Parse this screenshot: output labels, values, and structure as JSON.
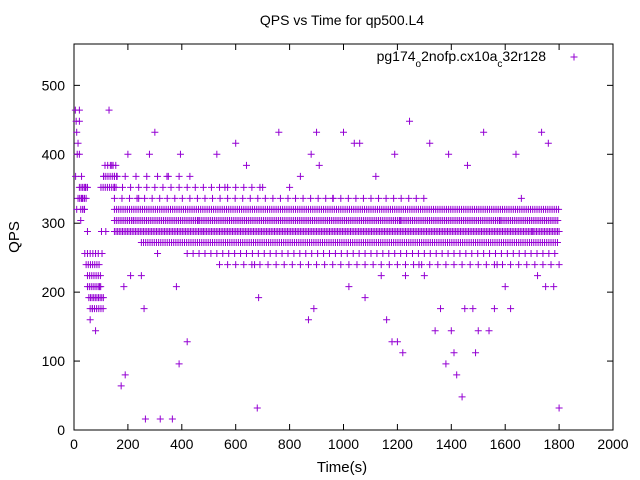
{
  "chart_data": {
    "type": "scatter",
    "title": "QPS vs Time for qp500.L4",
    "xlabel": "Time(s)",
    "ylabel": "QPS",
    "xlim": [
      0,
      2000
    ],
    "ylim": [
      0,
      560
    ],
    "xticks": [
      0,
      200,
      400,
      600,
      800,
      1000,
      1200,
      1400,
      1600,
      1800,
      2000
    ],
    "yticks": [
      0,
      100,
      200,
      300,
      400,
      500
    ],
    "grid": false,
    "legend_position": "top-right",
    "marker": "plus",
    "series": [
      {
        "name_parts": [
          "pg174",
          "o",
          "2nofp.cx10a",
          "c",
          "32r128"
        ],
        "color": "#9400d3",
        "bands": [
          {
            "y": 320,
            "x_start": 150,
            "x_end": 1800,
            "step": 8
          },
          {
            "y": 304,
            "x_start": 150,
            "x_end": 1800,
            "step": 7
          },
          {
            "y": 288,
            "x_start": 150,
            "x_end": 1800,
            "step": 6
          },
          {
            "y": 272,
            "x_start": 250,
            "x_end": 1800,
            "step": 8
          },
          {
            "y": 256,
            "x_start": 420,
            "x_end": 1800,
            "step": 22
          },
          {
            "y": 240,
            "x_start": 540,
            "x_end": 1800,
            "step": 30
          },
          {
            "y": 336,
            "x_start": 150,
            "x_end": 1300,
            "step": 28
          },
          {
            "y": 352,
            "x_start": 150,
            "x_end": 700,
            "step": 30
          },
          {
            "y": 368,
            "x_start": 110,
            "x_end": 460,
            "step": 40
          },
          {
            "y": 192,
            "x_start": 55,
            "x_end": 110,
            "step": 6
          },
          {
            "y": 208,
            "x_start": 50,
            "x_end": 105,
            "step": 7
          },
          {
            "y": 224,
            "x_start": 50,
            "x_end": 100,
            "step": 8
          },
          {
            "y": 240,
            "x_start": 45,
            "x_end": 100,
            "step": 8
          },
          {
            "y": 176,
            "x_start": 60,
            "x_end": 105,
            "step": 8
          },
          {
            "y": 256,
            "x_start": 40,
            "x_end": 90,
            "step": 10
          },
          {
            "y": 352,
            "x_start": 20,
            "x_end": 50,
            "step": 6
          },
          {
            "y": 336,
            "x_start": 15,
            "x_end": 45,
            "step": 6
          },
          {
            "y": 320,
            "x_start": 25,
            "x_end": 45,
            "step": 7
          },
          {
            "y": 368,
            "x_start": 110,
            "x_end": 160,
            "step": 8
          },
          {
            "y": 352,
            "x_start": 100,
            "x_end": 160,
            "step": 8
          },
          {
            "y": 384,
            "x_start": 115,
            "x_end": 160,
            "step": 10
          }
        ],
        "points": [
          [
            5,
            464
          ],
          [
            8,
            448
          ],
          [
            10,
            432
          ],
          [
            20,
            464
          ],
          [
            20,
            448
          ],
          [
            15,
            416
          ],
          [
            12,
            400
          ],
          [
            20,
            400
          ],
          [
            6,
            368
          ],
          [
            28,
            368
          ],
          [
            10,
            320
          ],
          [
            25,
            304
          ],
          [
            30,
            336
          ],
          [
            38,
            320
          ],
          [
            42,
            352
          ],
          [
            50,
            288
          ],
          [
            60,
            160
          ],
          [
            68,
            176
          ],
          [
            80,
            144
          ],
          [
            95,
            208
          ],
          [
            108,
            176
          ],
          [
            104,
            256
          ],
          [
            102,
            288
          ],
          [
            118,
            288
          ],
          [
            130,
            464
          ],
          [
            140,
            384
          ],
          [
            150,
            352
          ],
          [
            160,
            368
          ],
          [
            175,
            64
          ],
          [
            185,
            208
          ],
          [
            190,
            80
          ],
          [
            200,
            400
          ],
          [
            210,
            224
          ],
          [
            220,
            304
          ],
          [
            240,
            336
          ],
          [
            250,
            224
          ],
          [
            260,
            176
          ],
          [
            265,
            16
          ],
          [
            280,
            400
          ],
          [
            300,
            432
          ],
          [
            310,
            256
          ],
          [
            320,
            16
          ],
          [
            345,
            368
          ],
          [
            365,
            16
          ],
          [
            380,
            208
          ],
          [
            390,
            96
          ],
          [
            395,
            400
          ],
          [
            420,
            128
          ],
          [
            460,
            304
          ],
          [
            480,
            288
          ],
          [
            530,
            400
          ],
          [
            560,
            352
          ],
          [
            600,
            416
          ],
          [
            640,
            384
          ],
          [
            670,
            240
          ],
          [
            680,
            32
          ],
          [
            685,
            192
          ],
          [
            700,
            352
          ],
          [
            760,
            432
          ],
          [
            800,
            352
          ],
          [
            840,
            368
          ],
          [
            870,
            160
          ],
          [
            880,
            400
          ],
          [
            890,
            176
          ],
          [
            900,
            432
          ],
          [
            910,
            384
          ],
          [
            960,
            336
          ],
          [
            1000,
            432
          ],
          [
            1020,
            208
          ],
          [
            1040,
            416
          ],
          [
            1060,
            416
          ],
          [
            1080,
            192
          ],
          [
            1120,
            368
          ],
          [
            1140,
            224
          ],
          [
            1160,
            160
          ],
          [
            1180,
            128
          ],
          [
            1190,
            400
          ],
          [
            1200,
            128
          ],
          [
            1210,
            304
          ],
          [
            1220,
            112
          ],
          [
            1230,
            224
          ],
          [
            1245,
            448
          ],
          [
            1280,
            240
          ],
          [
            1300,
            224
          ],
          [
            1320,
            416
          ],
          [
            1340,
            144
          ],
          [
            1360,
            176
          ],
          [
            1380,
            96
          ],
          [
            1390,
            400
          ],
          [
            1400,
            144
          ],
          [
            1410,
            112
          ],
          [
            1420,
            80
          ],
          [
            1440,
            48
          ],
          [
            1450,
            176
          ],
          [
            1460,
            384
          ],
          [
            1480,
            176
          ],
          [
            1490,
            112
          ],
          [
            1500,
            144
          ],
          [
            1520,
            432
          ],
          [
            1540,
            144
          ],
          [
            1560,
            176
          ],
          [
            1570,
            240
          ],
          [
            1580,
            304
          ],
          [
            1600,
            208
          ],
          [
            1620,
            176
          ],
          [
            1640,
            400
          ],
          [
            1660,
            336
          ],
          [
            1700,
            288
          ],
          [
            1720,
            224
          ],
          [
            1735,
            432
          ],
          [
            1750,
            208
          ],
          [
            1760,
            416
          ],
          [
            1780,
            208
          ],
          [
            1800,
            32
          ]
        ]
      }
    ]
  }
}
